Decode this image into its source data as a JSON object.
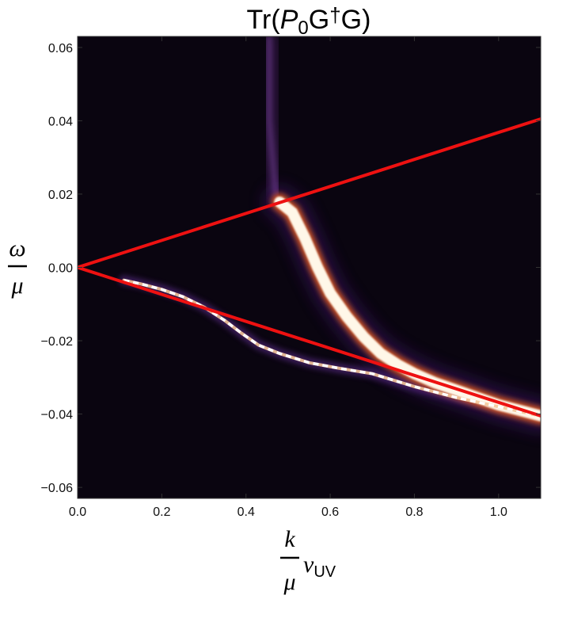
{
  "chart_data": {
    "type": "heatmap",
    "title": {
      "prefix": "Tr(",
      "symbol": "P",
      "subscript": "0",
      "mid": "G",
      "dagger": "†",
      "suffix": "G)"
    },
    "xlabel": {
      "numerator": "k",
      "denominator": "μ",
      "factor": "v",
      "factor_subscript": "UV"
    },
    "ylabel": {
      "numerator": "ω",
      "denominator": "μ"
    },
    "xlim": [
      0.0,
      1.1
    ],
    "ylim": [
      -0.063,
      0.063
    ],
    "x_ticks": [
      0.0,
      0.2,
      0.4,
      0.6,
      0.8,
      1.0
    ],
    "x_tick_labels": [
      "0.0",
      "0.2",
      "0.4",
      "0.6",
      "0.8",
      "1.0"
    ],
    "y_ticks": [
      0.06,
      0.04,
      0.02,
      0.0,
      -0.02,
      -0.04,
      -0.06
    ],
    "y_tick_labels": [
      "0.06",
      "0.04",
      "0.02",
      "0.00",
      "−0.02",
      "−0.04",
      "−0.06"
    ],
    "colormap": "dark purple → orange → white",
    "background_color": "#0a0510",
    "overlay_lines": [
      {
        "color": "#ee1111",
        "points": [
          [
            0.0,
            0.0
          ],
          [
            1.1,
            0.0405
          ]
        ]
      },
      {
        "color": "#ee1111",
        "points": [
          [
            0.0,
            0.0
          ],
          [
            1.1,
            -0.0405
          ]
        ]
      }
    ],
    "features": [
      {
        "name": "main band",
        "points": [
          [
            0.48,
            0.0178
          ],
          [
            0.51,
            0.015
          ],
          [
            0.54,
            0.008
          ],
          [
            0.57,
            0.0
          ],
          [
            0.6,
            -0.007
          ],
          [
            0.64,
            -0.0135
          ],
          [
            0.68,
            -0.019
          ],
          [
            0.72,
            -0.0235
          ],
          [
            0.76,
            -0.0265
          ],
          [
            0.8,
            -0.029
          ],
          [
            0.85,
            -0.0315
          ],
          [
            0.9,
            -0.0335
          ],
          [
            0.95,
            -0.0355
          ],
          [
            1.0,
            -0.0375
          ],
          [
            1.1,
            -0.0405
          ]
        ]
      },
      {
        "name": "lower arc",
        "points": [
          [
            0.11,
            -0.0035
          ],
          [
            0.15,
            -0.0045
          ],
          [
            0.2,
            -0.006
          ],
          [
            0.25,
            -0.008
          ],
          [
            0.3,
            -0.0108
          ],
          [
            0.35,
            -0.0145
          ],
          [
            0.39,
            -0.018
          ],
          [
            0.43,
            -0.0212
          ],
          [
            0.48,
            -0.0235
          ],
          [
            0.55,
            -0.026
          ],
          [
            0.62,
            -0.0275
          ],
          [
            0.7,
            -0.029
          ],
          [
            0.8,
            -0.0325
          ],
          [
            0.9,
            -0.0355
          ],
          [
            1.0,
            -0.038
          ],
          [
            1.1,
            -0.0405
          ]
        ]
      },
      {
        "name": "vertical purple glow",
        "points": [
          [
            0.455,
            0.063
          ],
          [
            0.455,
            0.04
          ],
          [
            0.47,
            0.02
          ]
        ]
      }
    ]
  }
}
